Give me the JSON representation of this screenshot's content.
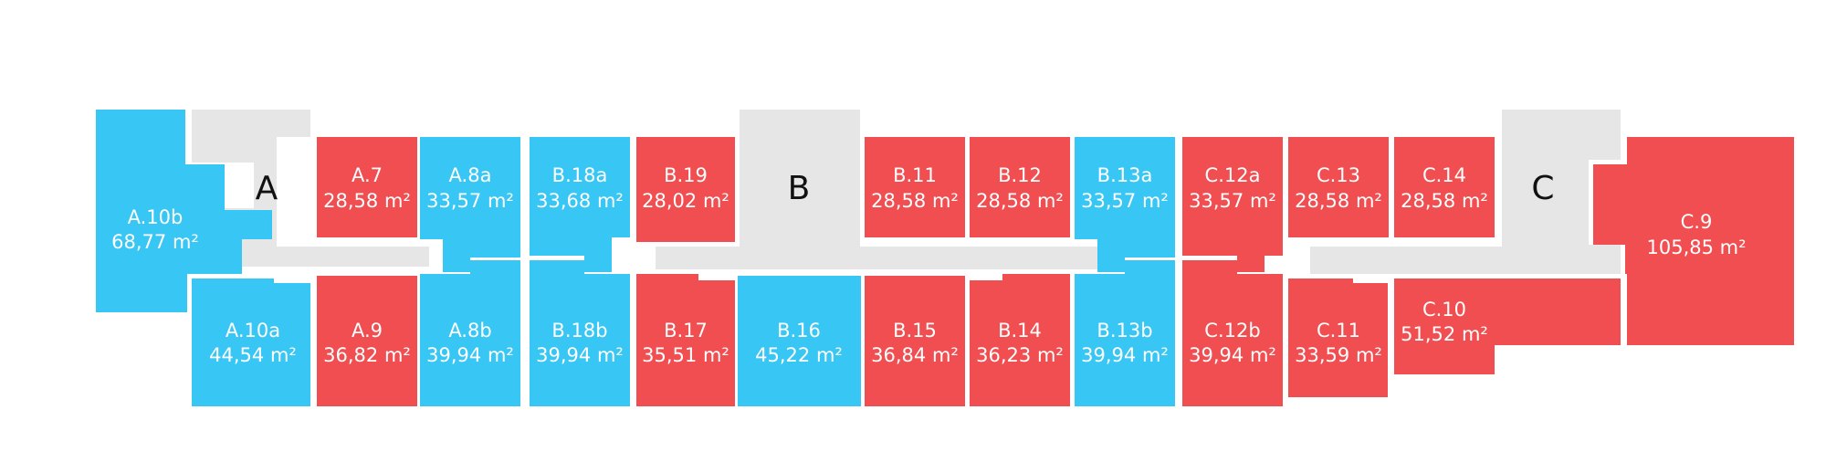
{
  "colors": {
    "available": "#38c6f4",
    "sold": "#f04e50",
    "common": "#e6e6e6",
    "label": "#ffffff",
    "block_letter": "#111111"
  },
  "blocks": [
    {
      "id": "block-a",
      "letter": "A"
    },
    {
      "id": "block-b",
      "letter": "B"
    },
    {
      "id": "block-c",
      "letter": "C"
    }
  ],
  "units": [
    {
      "id": "a-10b",
      "name": "A.10b",
      "area": "68,77 m²",
      "status": "available"
    },
    {
      "id": "a-10a",
      "name": "A.10a",
      "area": "44,54 m²",
      "status": "available"
    },
    {
      "id": "a-7",
      "name": "A.7",
      "area": "28,58 m²",
      "status": "sold"
    },
    {
      "id": "a-9",
      "name": "A.9",
      "area": "36,82 m²",
      "status": "sold"
    },
    {
      "id": "a-8a",
      "name": "A.8a",
      "area": "33,57 m²",
      "status": "available"
    },
    {
      "id": "a-8b",
      "name": "A.8b",
      "area": "39,94 m²",
      "status": "available"
    },
    {
      "id": "b-18a",
      "name": "B.18a",
      "area": "33,68 m²",
      "status": "available"
    },
    {
      "id": "b-18b",
      "name": "B.18b",
      "area": "39,94 m²",
      "status": "available"
    },
    {
      "id": "b-19",
      "name": "B.19",
      "area": "28,02 m²",
      "status": "sold"
    },
    {
      "id": "b-17",
      "name": "B.17",
      "area": "35,51 m²",
      "status": "sold"
    },
    {
      "id": "b-16",
      "name": "B.16",
      "area": "45,22 m²",
      "status": "available"
    },
    {
      "id": "b-11",
      "name": "B.11",
      "area": "28,58 m²",
      "status": "sold"
    },
    {
      "id": "b-15",
      "name": "B.15",
      "area": "36,84 m²",
      "status": "sold"
    },
    {
      "id": "b-12",
      "name": "B.12",
      "area": "28,58 m²",
      "status": "sold"
    },
    {
      "id": "b-14",
      "name": "B.14",
      "area": "36,23 m²",
      "status": "sold"
    },
    {
      "id": "b-13a",
      "name": "B.13a",
      "area": "33,57 m²",
      "status": "available"
    },
    {
      "id": "b-13b",
      "name": "B.13b",
      "area": "39,94 m²",
      "status": "available"
    },
    {
      "id": "c-12a",
      "name": "C.12a",
      "area": "33,57 m²",
      "status": "sold"
    },
    {
      "id": "c-12b",
      "name": "C.12b",
      "area": "39,94 m²",
      "status": "sold"
    },
    {
      "id": "c-13",
      "name": "C.13",
      "area": "28,58 m²",
      "status": "sold"
    },
    {
      "id": "c-11",
      "name": "C.11",
      "area": "33,59 m²",
      "status": "sold"
    },
    {
      "id": "c-14",
      "name": "C.14",
      "area": "28,58 m²",
      "status": "sold"
    },
    {
      "id": "c-10",
      "name": "C.10",
      "area": "51,52 m²",
      "status": "sold"
    },
    {
      "id": "c-9",
      "name": "C.9",
      "area": "105,85 m²",
      "status": "sold"
    }
  ]
}
